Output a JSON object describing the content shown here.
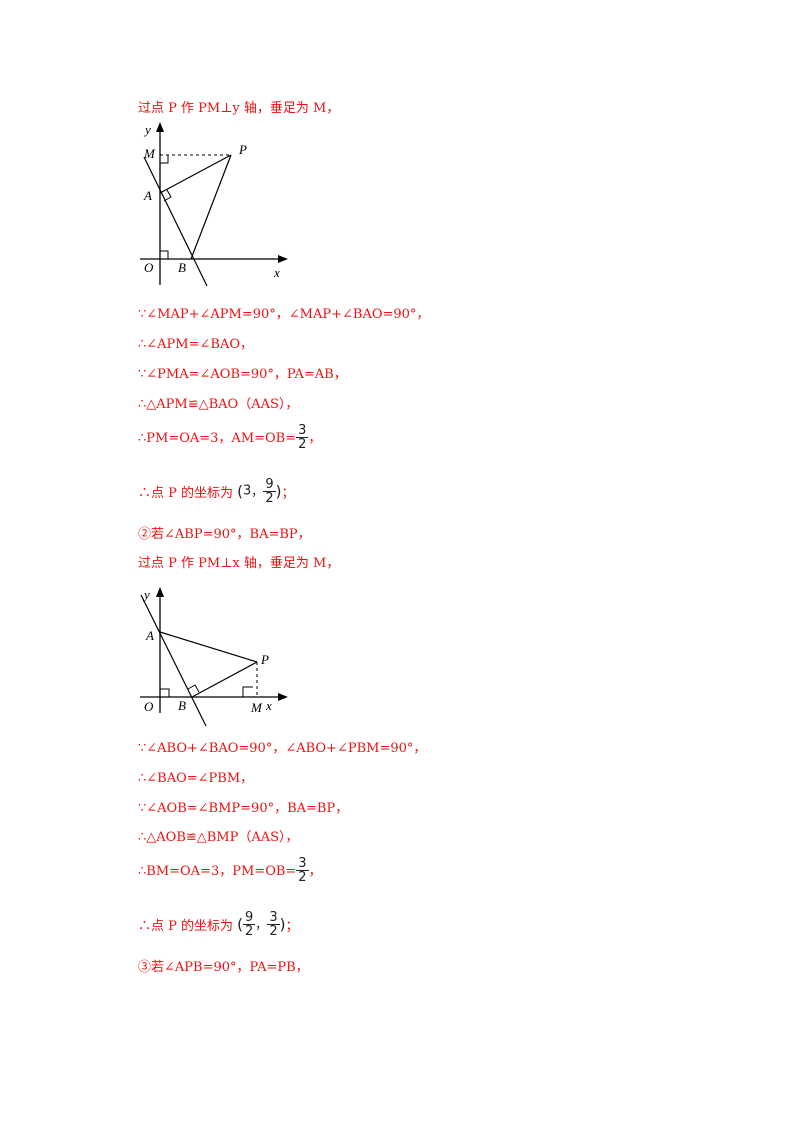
{
  "lines": {
    "l1": "过点 P 作 PM⊥y 轴，垂足为 M，",
    "l2": "∵∠MAP+∠APM=90°，∠MAP+∠BAO=90°，",
    "l3": "∴∠APM=∠BAO，",
    "l4": "∵∠PMA=∠AOB=90°，PA=AB，",
    "l5": "∴△APM≌△BAO（AAS），",
    "l6_pre": "∴PM=OA=3，AM=OB=",
    "l6_num": "3",
    "l6_den": "2",
    "l6_post": "，",
    "l7_pre": "∴点 P 的坐标为",
    "l7_x": "3",
    "l7_ynum": "9",
    "l7_yden": "2",
    "l7_post": "；",
    "l8": "②若∠ABP=90°，BA=BP，",
    "l9": "过点 P 作 PM⊥x 轴，垂足为 M，",
    "l10": "∵∠ABO+∠BAO=90°，∠ABO+∠PBM=90°，",
    "l11": "∴∠BAO=∠PBM，",
    "l12": "∵∠AOB=∠BMP=90°，BA=BP，",
    "l13": "∴△AOB≌△BMP（AAS），",
    "l14_pre": "∴BM=OA=3，PM=OB=",
    "l14_num": "3",
    "l14_den": "2",
    "l14_post": "，",
    "l15_pre": "∴点 P 的坐标为",
    "l15_xnum": "9",
    "l15_xden": "2",
    "l15_ynum": "3",
    "l15_yden": "2",
    "l15_post": "；",
    "l16": "③若∠APB=90°，PA=PB，"
  },
  "figure1": {
    "y": "y",
    "x": "x",
    "M": "M",
    "P": "P",
    "A": "A",
    "O": "O",
    "B": "B"
  },
  "figure2": {
    "y": "y",
    "x": "x",
    "A": "A",
    "P": "P",
    "O": "O",
    "B": "B",
    "M": "M"
  },
  "paren_open": "(",
  "paren_close": ")",
  "comma": "，"
}
